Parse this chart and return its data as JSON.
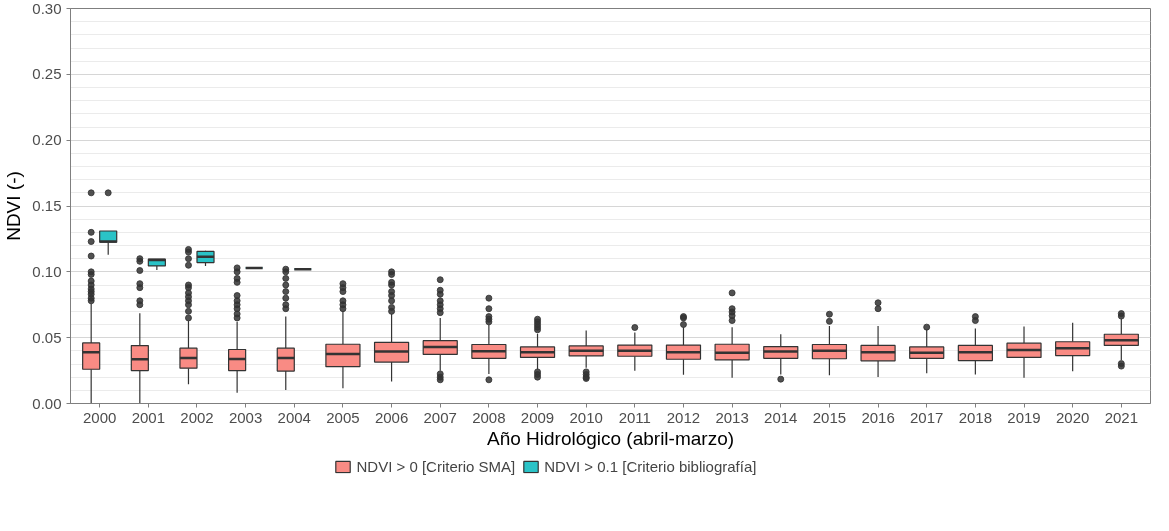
{
  "chart_data": {
    "type": "box",
    "xlabel": "Año Hidrológico (abril-marzo)",
    "ylabel": "NDVI (-)",
    "categories": [
      "2000",
      "2001",
      "2002",
      "2003",
      "2004",
      "2005",
      "2006",
      "2007",
      "2008",
      "2009",
      "2010",
      "2011",
      "2012",
      "2013",
      "2014",
      "2015",
      "2016",
      "2017",
      "2018",
      "2019",
      "2020",
      "2021"
    ],
    "ylim": [
      0,
      0.3
    ],
    "yticks": [
      {
        "value": 0,
        "label": "0.00"
      },
      {
        "value": 0.01,
        "label": null
      },
      {
        "value": 0.02,
        "label": null
      },
      {
        "value": 0.03,
        "label": null
      },
      {
        "value": 0.04,
        "label": null
      },
      {
        "value": 0.05,
        "label": "0.05"
      },
      {
        "value": 0.06,
        "label": null
      },
      {
        "value": 0.07,
        "label": null
      },
      {
        "value": 0.08,
        "label": null
      },
      {
        "value": 0.09,
        "label": null
      },
      {
        "value": 0.1,
        "label": "0.10"
      },
      {
        "value": 0.11,
        "label": null
      },
      {
        "value": 0.12,
        "label": null
      },
      {
        "value": 0.13,
        "label": null
      },
      {
        "value": 0.14,
        "label": null
      },
      {
        "value": 0.15,
        "label": "0.15"
      },
      {
        "value": 0.16,
        "label": null
      },
      {
        "value": 0.17,
        "label": null
      },
      {
        "value": 0.18,
        "label": null
      },
      {
        "value": 0.19,
        "label": null
      },
      {
        "value": 0.2,
        "label": "0.20"
      },
      {
        "value": 0.21,
        "label": null
      },
      {
        "value": 0.22,
        "label": null
      },
      {
        "value": 0.23,
        "label": null
      },
      {
        "value": 0.24,
        "label": null
      },
      {
        "value": 0.25,
        "label": "0.25"
      },
      {
        "value": 0.26,
        "label": null
      },
      {
        "value": 0.27,
        "label": null
      },
      {
        "value": 0.28,
        "label": null
      },
      {
        "value": 0.29,
        "label": null
      },
      {
        "value": 0.3,
        "label": "0.30"
      }
    ],
    "grid": "y",
    "legend": "bottom",
    "series": [
      {
        "name": "NDVI > 0 [Criterio SMA]",
        "color": "#f98b84",
        "boxes": [
          {
            "low": 0,
            "q1": 0.026,
            "median": 0.039,
            "q3": 0.046,
            "high": 0.076,
            "outliers": [
              0.16,
              0.13,
              0.123,
              0.112,
              0.1,
              0.098,
              0.093,
              0.09,
              0.087,
              0.085,
              0.083,
              0.08,
              0.078
            ]
          },
          {
            "low": 0,
            "q1": 0.025,
            "median": 0.0336,
            "q3": 0.044,
            "high": 0.0685,
            "outliers": [
              0.11,
              0.108,
              0.101,
              0.091,
              0.088,
              0.078,
              0.075
            ]
          },
          {
            "low": 0.0146,
            "q1": 0.0268,
            "median": 0.0345,
            "q3": 0.042,
            "high": 0.0627,
            "outliers": [
              0.117,
              0.115,
              0.11,
              0.105,
              0.09,
              0.088,
              0.084,
              0.081,
              0.078,
              0.075,
              0.07,
              0.065
            ]
          },
          {
            "low": 0.0082,
            "q1": 0.025,
            "median": 0.0338,
            "q3": 0.041,
            "high": 0.062,
            "outliers": [
              0.103,
              0.1,
              0.095,
              0.092,
              0.082,
              0.078,
              0.075,
              0.072,
              0.068,
              0.065
            ]
          },
          {
            "low": 0.0103,
            "q1": 0.0246,
            "median": 0.0345,
            "q3": 0.042,
            "high": 0.066,
            "outliers": [
              0.102,
              0.1,
              0.095,
              0.09,
              0.085,
              0.08,
              0.075,
              0.072
            ]
          },
          {
            "low": 0.0115,
            "q1": 0.028,
            "median": 0.0376,
            "q3": 0.045,
            "high": 0.07,
            "outliers": [
              0.091,
              0.088,
              0.085,
              0.078,
              0.075,
              0.072
            ]
          },
          {
            "low": 0.0167,
            "q1": 0.0315,
            "median": 0.0394,
            "q3": 0.0465,
            "high": 0.068,
            "outliers": [
              0.1,
              0.098,
              0.092,
              0.09,
              0.085,
              0.082,
              0.078,
              0.073,
              0.07
            ]
          },
          {
            "low": 0.0249,
            "q1": 0.0373,
            "median": 0.043,
            "q3": 0.0477,
            "high": 0.065,
            "outliers": [
              0.094,
              0.086,
              0.083,
              0.078,
              0.075,
              0.072,
              0.069,
              0.0225,
              0.02,
              0.018
            ]
          },
          {
            "low": 0.0225,
            "q1": 0.0343,
            "median": 0.0397,
            "q3": 0.0448,
            "high": 0.06,
            "outliers": [
              0.08,
              0.072,
              0.066,
              0.064,
              0.062,
              0.018
            ]
          },
          {
            "low": 0.026,
            "q1": 0.035,
            "median": 0.039,
            "q3": 0.043,
            "high": 0.053,
            "outliers": [
              0.064,
              0.062,
              0.06,
              0.058,
              0.056,
              0.024,
              0.022,
              0.02
            ]
          },
          {
            "low": 0.0272,
            "q1": 0.0361,
            "median": 0.0401,
            "q3": 0.0437,
            "high": 0.0554,
            "outliers": [
              0.024,
              0.022,
              0.02,
              0.019
            ]
          },
          {
            "low": 0.0249,
            "q1": 0.0359,
            "median": 0.0401,
            "q3": 0.0444,
            "high": 0.054,
            "outliers": [
              0.0577
            ]
          },
          {
            "low": 0.0218,
            "q1": 0.0336,
            "median": 0.039,
            "q3": 0.0444,
            "high": 0.058,
            "outliers": [
              0.066,
              0.065,
              0.06
            ]
          },
          {
            "low": 0.0195,
            "q1": 0.0331,
            "median": 0.0385,
            "q3": 0.045,
            "high": 0.058,
            "outliers": [
              0.084,
              0.072,
              0.0695,
              0.0667,
              0.063
            ]
          },
          {
            "low": 0.022,
            "q1": 0.0343,
            "median": 0.0394,
            "q3": 0.0432,
            "high": 0.0526,
            "outliers": [
              0.0185
            ]
          },
          {
            "low": 0.0214,
            "q1": 0.034,
            "median": 0.0401,
            "q3": 0.0448,
            "high": 0.0589,
            "outliers": [
              0.0678,
              0.0624
            ]
          },
          {
            "low": 0.0202,
            "q1": 0.0324,
            "median": 0.039,
            "q3": 0.0441,
            "high": 0.0589,
            "outliers": [
              0.0765,
              0.072
            ]
          },
          {
            "low": 0.023,
            "q1": 0.0343,
            "median": 0.0385,
            "q3": 0.043,
            "high": 0.056,
            "outliers": [
              0.058
            ]
          },
          {
            "low": 0.0221,
            "q1": 0.0326,
            "median": 0.039,
            "q3": 0.0441,
            "high": 0.057,
            "outliers": [
              0.066,
              0.063
            ]
          },
          {
            "low": 0.0195,
            "q1": 0.035,
            "median": 0.0406,
            "q3": 0.0458,
            "high": 0.0585
          },
          {
            "low": 0.0244,
            "q1": 0.0364,
            "median": 0.042,
            "q3": 0.0469,
            "high": 0.0613
          },
          {
            "low": 0.033,
            "q1": 0.0441,
            "median": 0.0481,
            "q3": 0.0526,
            "high": 0.0641,
            "outliers": [
              0.0683,
              0.0664,
              0.0303,
              0.0284
            ]
          }
        ]
      },
      {
        "name": "NDVI > 0.1 [Criterio bibliografía]",
        "color": "#2ac3c7",
        "boxes": [
          {
            "low": 0.113,
            "q1": 0.1225,
            "median": 0.123,
            "q3": 0.131,
            "high": 0.131,
            "outliers": [
              0.16
            ]
          },
          {
            "low": 0.1014,
            "q1": 0.1045,
            "median": 0.109,
            "q3": 0.1096,
            "high": 0.1096
          },
          {
            "low": 0.1045,
            "q1": 0.107,
            "median": 0.1115,
            "q3": 0.1155,
            "high": 0.116
          },
          {
            "low": 0.103,
            "q1": 0.103,
            "median": 0.103,
            "q3": 0.103,
            "high": 0.103
          },
          {
            "low": 0.102,
            "q1": 0.102,
            "median": 0.102,
            "q3": 0.102,
            "high": 0.102
          },
          null,
          null,
          null,
          null,
          null,
          null,
          null,
          null,
          null,
          null,
          null,
          null,
          null,
          null,
          null,
          null,
          null
        ]
      }
    ]
  }
}
